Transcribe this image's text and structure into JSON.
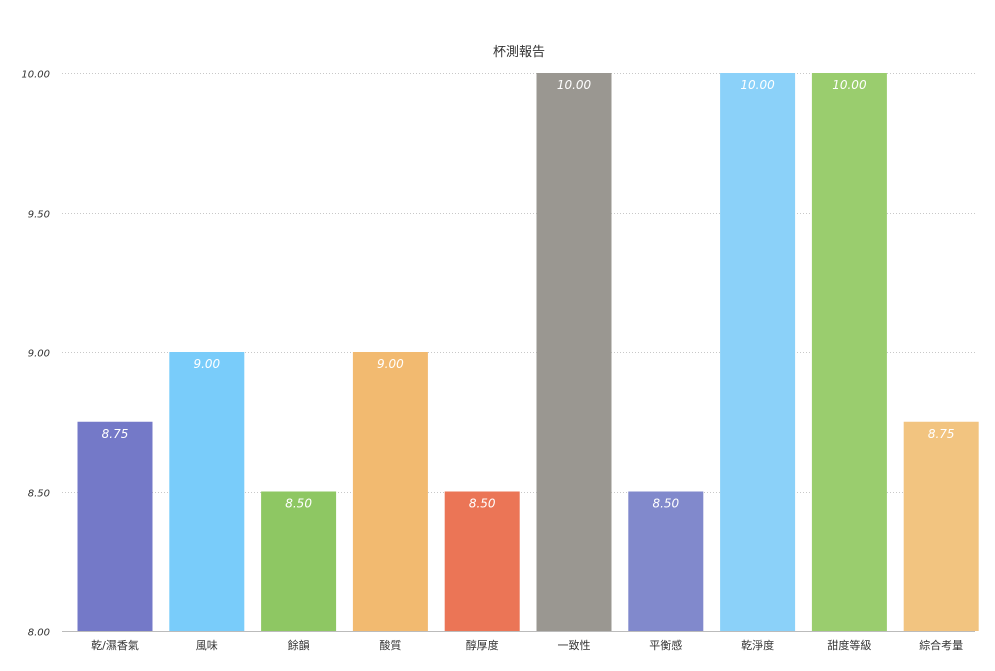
{
  "chart_data": {
    "type": "bar",
    "title": "杯測報告",
    "xlabel": "",
    "ylabel": "",
    "ylim": [
      8.0,
      10.0
    ],
    "yticks": [
      "8.00",
      "8.50",
      "9.00",
      "9.50",
      "10.00"
    ],
    "ytick_values": [
      8.0,
      8.5,
      9.0,
      9.5,
      10.0
    ],
    "grid": true,
    "categories": [
      "乾/濕香氣",
      "風味",
      "餘韻",
      "酸質",
      "醇厚度",
      "一致性",
      "平衡感",
      "乾淨度",
      "甜度等級",
      "綜合考量"
    ],
    "values": [
      8.75,
      9.0,
      8.5,
      9.0,
      8.5,
      10.0,
      8.5,
      10.0,
      10.0,
      8.75
    ],
    "data_labels": [
      "8.75",
      "9.00",
      "8.50",
      "9.00",
      "8.50",
      "10.00",
      "8.50",
      "10.00",
      "10.00",
      "8.75"
    ],
    "colors": [
      "#7479c8",
      "#79ccfa",
      "#8ec763",
      "#f2ba70",
      "#eb7556",
      "#9a9791",
      "#8189cc",
      "#8bd1f9",
      "#9acd6e",
      "#f2c480"
    ]
  }
}
